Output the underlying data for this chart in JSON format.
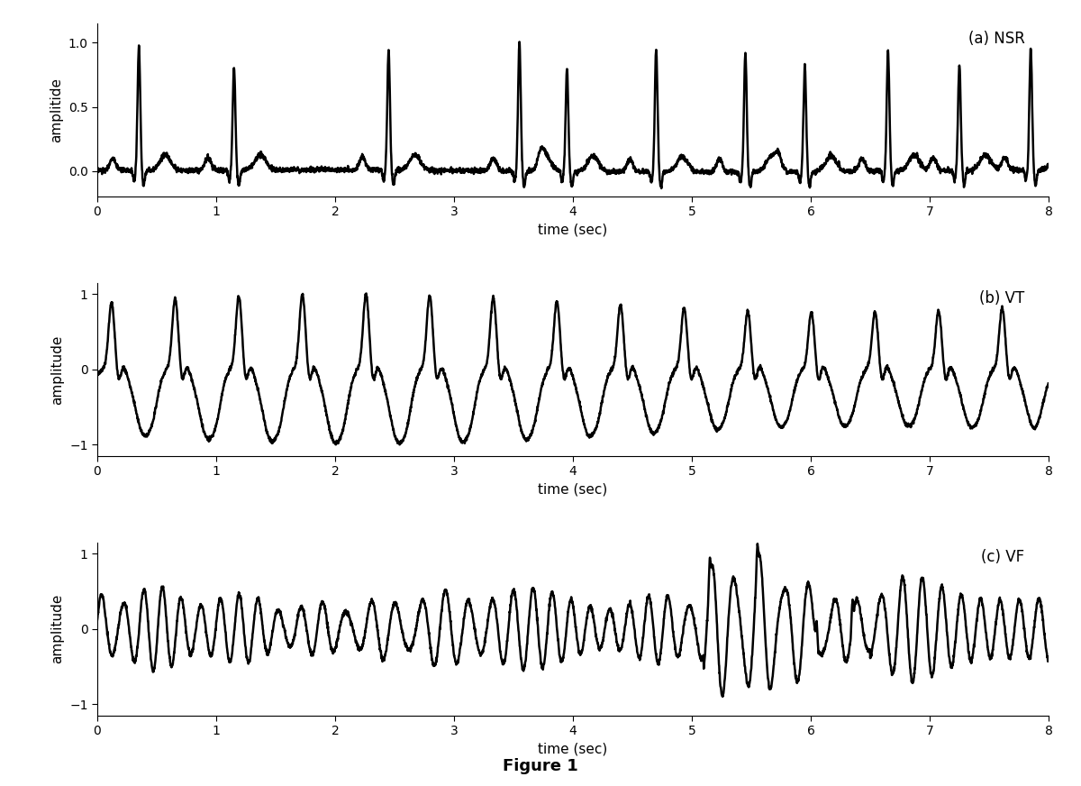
{
  "title_a": "(a) NSR",
  "title_b": "(b) VT",
  "title_c": "(c) VF",
  "xlabel": "time (sec)",
  "ylabel": "amplitude",
  "ylabel_a": "amplitide",
  "figure_caption": "Figure 1",
  "xlim": [
    0,
    8
  ],
  "ylim_a": [
    -0.2,
    1.15
  ],
  "ylim_b": [
    -1.15,
    1.15
  ],
  "ylim_c": [
    -1.15,
    1.15
  ],
  "yticks_a": [
    0,
    0.5,
    1
  ],
  "yticks_b": [
    -1,
    0,
    1
  ],
  "yticks_c": [
    -1,
    0,
    1
  ],
  "xticks": [
    0,
    1,
    2,
    3,
    4,
    5,
    6,
    7,
    8
  ],
  "line_color": "#000000",
  "background_color": "#ffffff",
  "line_width": 1.8,
  "fs": 500,
  "duration": 8
}
